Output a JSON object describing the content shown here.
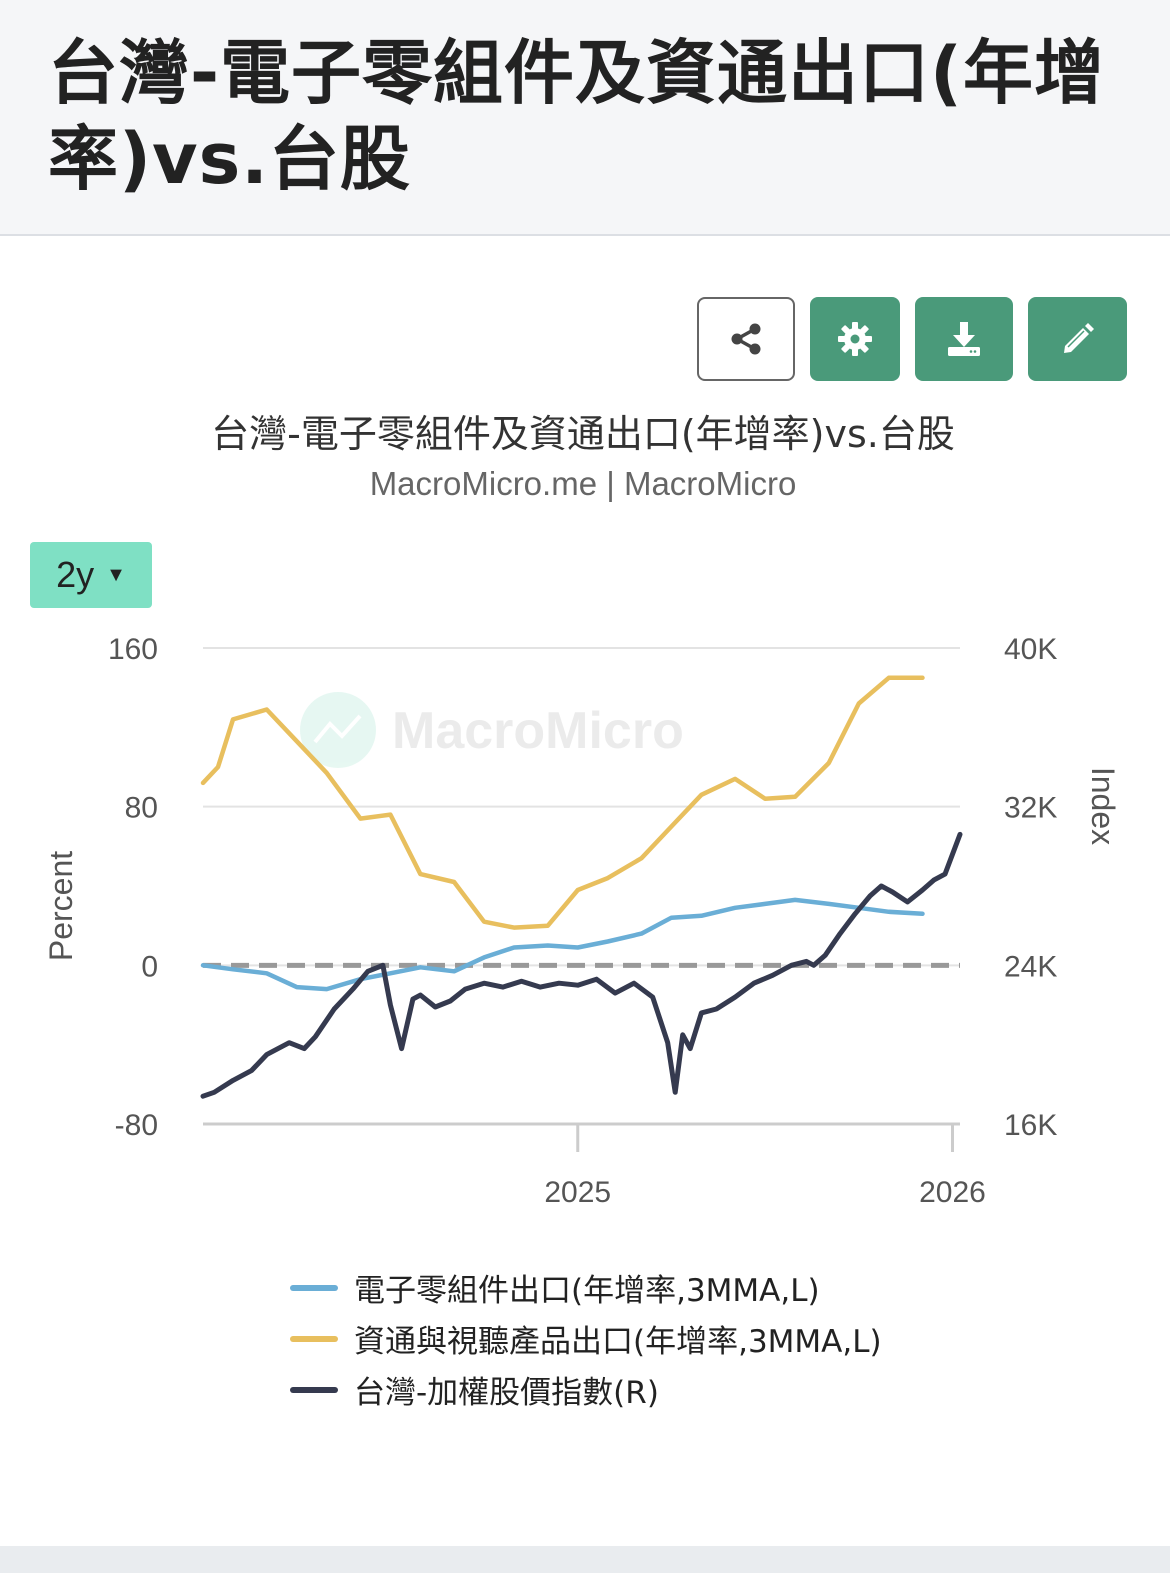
{
  "page": {
    "title": "台灣-電子零組件及資通出口(年增率)vs.台股"
  },
  "toolbar": {
    "share_icon": "share-icon",
    "settings_icon": "gear-icon",
    "download_icon": "download-icon",
    "edit_icon": "pencil-icon",
    "accent_color": "#4a9a7a"
  },
  "range_selector": {
    "label": "2y",
    "caret": "▼"
  },
  "watermark": {
    "text": "MacroMicro"
  },
  "chart_data": {
    "type": "line",
    "title": "台灣-電子零組件及資通出口(年增率)vs.台股",
    "subtitle": "MacroMicro.me | MacroMicro",
    "ylabel_left": "Percent",
    "ylabel_right": "Index",
    "ylim_left": [
      -80,
      160
    ],
    "ylim_right": [
      16000,
      40000
    ],
    "yticks_left": [
      "160",
      "80",
      "0",
      "-80"
    ],
    "yticks_right": [
      "40K",
      "32K",
      "24K",
      "16K"
    ],
    "xlim": [
      2024.0,
      2026.02
    ],
    "xticks": [
      {
        "value": 2025,
        "label": "2025"
      },
      {
        "value": 2026,
        "label": "2026"
      }
    ],
    "zero_line": true,
    "series": [
      {
        "name": "電子零組件出口(年增率,3MMA,L)",
        "axis": "left",
        "color": "#6aaed6",
        "x": [
          2024.0,
          2024.08,
          2024.17,
          2024.25,
          2024.33,
          2024.42,
          2024.5,
          2024.58,
          2024.67,
          2024.75,
          2024.83,
          2024.92,
          2025.0,
          2025.08,
          2025.17,
          2025.25,
          2025.33,
          2025.42,
          2025.5,
          2025.58,
          2025.67,
          2025.75,
          2025.83,
          2025.92
        ],
        "values": [
          0,
          -2,
          -4,
          -11,
          -12,
          -7,
          -4,
          -1,
          -3,
          4,
          9,
          10,
          9,
          12,
          16,
          24,
          25,
          29,
          31,
          33,
          31,
          29,
          27,
          26
        ]
      },
      {
        "name": "資通與視聽產品出口(年增率,3MMA,L)",
        "axis": "left",
        "color": "#e8bf5e",
        "x": [
          2024.0,
          2024.04,
          2024.08,
          2024.17,
          2024.25,
          2024.33,
          2024.42,
          2024.5,
          2024.58,
          2024.67,
          2024.75,
          2024.83,
          2024.92,
          2025.0,
          2025.08,
          2025.17,
          2025.25,
          2025.33,
          2025.42,
          2025.5,
          2025.58,
          2025.67,
          2025.75,
          2025.83,
          2025.92
        ],
        "values": [
          92,
          100,
          124,
          129,
          113,
          97,
          74,
          76,
          46,
          42,
          22,
          19,
          20,
          38,
          44,
          54,
          70,
          86,
          94,
          84,
          85,
          102,
          132,
          145,
          145
        ]
      },
      {
        "name": "台灣-加權股價指數(R)",
        "axis": "right",
        "color": "#353a4f",
        "x": [
          2024.0,
          2024.03,
          2024.08,
          2024.13,
          2024.17,
          2024.23,
          2024.27,
          2024.3,
          2024.35,
          2024.4,
          2024.44,
          2024.48,
          2024.5,
          2024.53,
          2024.56,
          2024.58,
          2024.62,
          2024.66,
          2024.7,
          2024.75,
          2024.8,
          2024.85,
          2024.9,
          2024.95,
          2025.0,
          2025.05,
          2025.1,
          2025.15,
          2025.2,
          2025.24,
          2025.26,
          2025.28,
          2025.3,
          2025.33,
          2025.37,
          2025.42,
          2025.47,
          2025.52,
          2025.57,
          2025.61,
          2025.63,
          2025.66,
          2025.7,
          2025.74,
          2025.78,
          2025.81,
          2025.84,
          2025.88,
          2025.92,
          2025.95,
          2025.98,
          2026.02
        ],
        "values": [
          17400,
          17600,
          18200,
          18700,
          19500,
          20100,
          19800,
          20400,
          21800,
          22800,
          23700,
          24000,
          22000,
          19800,
          22300,
          22500,
          21900,
          22200,
          22800,
          23100,
          22900,
          23200,
          22900,
          23100,
          23000,
          23300,
          22600,
          23100,
          22400,
          20100,
          17600,
          20500,
          19800,
          21600,
          21800,
          22400,
          23100,
          23500,
          24000,
          24200,
          24000,
          24500,
          25600,
          26600,
          27500,
          28000,
          27700,
          27200,
          27800,
          28300,
          28600,
          30600
        ]
      }
    ]
  },
  "legend": {
    "items": [
      {
        "label": "電子零組件出口(年增率,3MMA,L)",
        "color": "#6aaed6"
      },
      {
        "label": "資通與視聽產品出口(年增率,3MMA,L)",
        "color": "#e8bf5e"
      },
      {
        "label": "台灣-加權股價指數(R)",
        "color": "#353a4f"
      }
    ]
  }
}
